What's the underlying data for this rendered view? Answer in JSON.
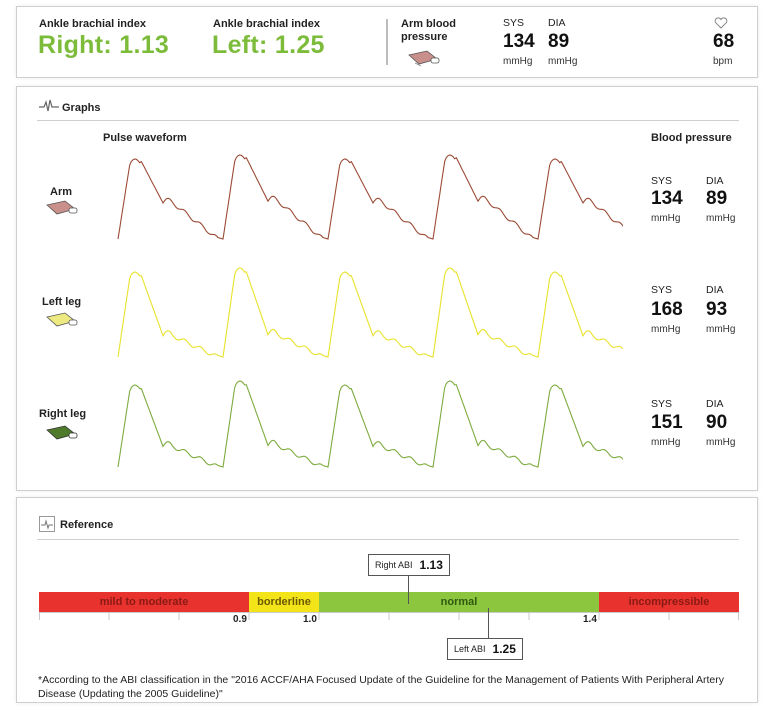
{
  "summary": {
    "abi_right_label": "Ankle brachial index",
    "abi_right_value": "Right: 1.13",
    "abi_left_label": "Ankle brachial index",
    "abi_left_value": "Left: 1.25",
    "arm_bp_label": "Arm blood pressure",
    "sys_label": "SYS",
    "sys_value": "134",
    "sys_unit": "mmHg",
    "dia_label": "DIA",
    "dia_value": "89",
    "dia_unit": "mmHg",
    "pulse_value": "68",
    "pulse_unit": "bpm"
  },
  "graphs": {
    "title": "Graphs",
    "pulse_waveform_header": "Pulse waveform",
    "blood_pressure_header": "Blood pressure",
    "rows": [
      {
        "label": "Arm",
        "color": "#9b4a35",
        "sys_label": "SYS",
        "sys": "134",
        "dia_label": "DIA",
        "dia": "89",
        "unit": "mmHg"
      },
      {
        "label": "Left leg",
        "color": "#e8e22a",
        "sys_label": "SYS",
        "sys": "168",
        "dia_label": "DIA",
        "dia": "93",
        "unit": "mmHg"
      },
      {
        "label": "Right leg",
        "color": "#7dab3e",
        "sys_label": "SYS",
        "sys": "151",
        "dia_label": "DIA",
        "dia": "90",
        "unit": "mmHg"
      }
    ]
  },
  "reference": {
    "title": "Reference",
    "segments": [
      {
        "label": "mild to moderate",
        "color": "#e8322e",
        "text_color": "#8a1a14"
      },
      {
        "label": "borderline",
        "color": "#f3e41a",
        "text_color": "#6b5a00"
      },
      {
        "label": "normal",
        "color": "#8cc63f",
        "text_color": "#2f5a10"
      },
      {
        "label": "incompressible",
        "color": "#e8322e",
        "text_color": "#8a1a14"
      }
    ],
    "ticks": [
      "0.9",
      "1.0",
      "1.4"
    ],
    "right_abi_label": "Right ABI",
    "right_abi_value": "1.13",
    "left_abi_label": "Left ABI",
    "left_abi_value": "1.25",
    "footnote": "*According to the ABI classification in the \"2016 ACCF/AHA Focused Update of the Guideline for the Management of Patients With Peripheral Artery Disease (Updating the 2005 Guideline)\""
  }
}
